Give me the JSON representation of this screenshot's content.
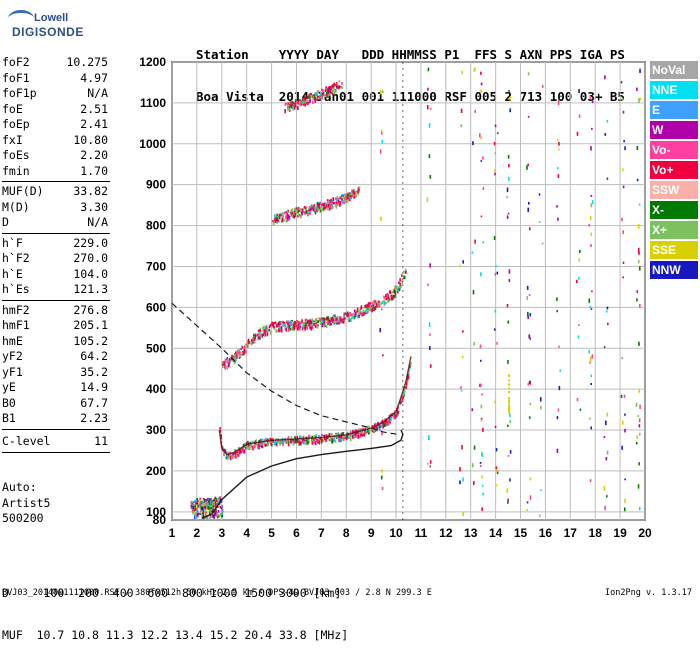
{
  "logo": {
    "line1": "Lowell",
    "line2": "DIGISONDE"
  },
  "header": {
    "row1": "Station    YYYY DAY   DDD HHMMSS P1  FFS S AXN PPS IGA PS",
    "row2": "Boa Vista  2014 Jan01 001 111000 RSF 005 2 713 100 03+ B5"
  },
  "params_group1": [
    {
      "label": "foF2",
      "value": "10.275"
    },
    {
      "label": "foF1",
      "value": "4.97"
    },
    {
      "label": "foF1p",
      "value": "N/A"
    },
    {
      "label": "foE",
      "value": "2.51"
    },
    {
      "label": "foEp",
      "value": "2.41"
    },
    {
      "label": "fxI",
      "value": "10.80"
    },
    {
      "label": "foEs",
      "value": "2.20"
    },
    {
      "label": "fmin",
      "value": "1.70"
    }
  ],
  "params_group2": [
    {
      "label": "MUF(D)",
      "value": "33.82"
    },
    {
      "label": "M(D)",
      "value": "3.30"
    },
    {
      "label": "D",
      "value": "N/A"
    }
  ],
  "params_group3": [
    {
      "label": "h`F",
      "value": "229.0"
    },
    {
      "label": "h`F2",
      "value": "270.0"
    },
    {
      "label": "h`E",
      "value": "104.0"
    },
    {
      "label": "h`Es",
      "value": "121.3"
    }
  ],
  "params_group4": [
    {
      "label": "hmF2",
      "value": "276.8"
    },
    {
      "label": "hmF1",
      "value": "205.1"
    },
    {
      "label": "hmE",
      "value": "105.2"
    },
    {
      "label": "yF2",
      "value": "64.2"
    },
    {
      "label": "yF1",
      "value": "35.2"
    },
    {
      "label": "yE",
      "value": "14.9"
    },
    {
      "label": "B0",
      "value": "67.7"
    },
    {
      "label": "B1",
      "value": "2.23"
    }
  ],
  "clevel": {
    "label": "C-level",
    "value": "11"
  },
  "auto": {
    "line1": "Auto:",
    "line2": "Artist5",
    "line3": "500200"
  },
  "legend": [
    {
      "label": "NoVal",
      "color": "#a6a6a6"
    },
    {
      "label": "NNE",
      "color": "#00e0f0"
    },
    {
      "label": "E",
      "color": "#3fa0ff"
    },
    {
      "label": "W",
      "color": "#b000a8"
    },
    {
      "label": "Vo-",
      "color": "#ff40a0"
    },
    {
      "label": "Vo+",
      "color": "#f00040"
    },
    {
      "label": "SSW",
      "color": "#f8b0a8"
    },
    {
      "label": "X-",
      "color": "#007a00"
    },
    {
      "label": "X+",
      "color": "#7cc060"
    },
    {
      "label": "SSE",
      "color": "#d8d000"
    },
    {
      "label": "NNW",
      "color": "#1818c0"
    }
  ],
  "bottom": {
    "row1": "D     100  200  400  600  800 1000 1500 3000 [km]",
    "row2": "MUF  10.7 10.8 11.3 12.2 13.4 15.2 20.4 33.8 [MHz]"
  },
  "footer": {
    "text": "BVJ03_2014001111000.RSF / 380fx512h 50 kHz 2.5 km / DPS-4D BVJ03 003 / 2.8 N 299.3 E",
    "version": "Ion2Png v. 1.3.17"
  },
  "chart_data": {
    "type": "scatter",
    "xlim": [
      1,
      20
    ],
    "ylim": [
      80,
      1200
    ],
    "xticks": [
      1,
      2,
      3,
      4,
      5,
      6,
      7,
      8,
      9,
      10,
      11,
      12,
      13,
      14,
      15,
      16,
      17,
      18,
      19,
      20
    ],
    "yticks": [
      80,
      100,
      200,
      300,
      400,
      500,
      600,
      700,
      800,
      900,
      1000,
      1100,
      1200
    ],
    "grid": true,
    "traces": [
      {
        "name": "F2 trace",
        "x": [
          2.9,
          3.0,
          3.2,
          3.5,
          4.0,
          5.0,
          6.0,
          7.0,
          8.0,
          9.0,
          9.5,
          10.0,
          10.2,
          10.4,
          10.6
        ],
        "y": [
          300,
          255,
          240,
          245,
          265,
          275,
          278,
          282,
          288,
          305,
          320,
          345,
          380,
          420,
          480
        ]
      },
      {
        "name": "F2 2nd hop",
        "x": [
          3.0,
          3.5,
          4.0,
          4.5,
          5.0,
          6.0,
          7.0,
          8.0,
          9.0,
          9.5,
          10.0,
          10.4
        ],
        "y": [
          460,
          480,
          510,
          540,
          555,
          560,
          565,
          580,
          605,
          620,
          645,
          695
        ]
      },
      {
        "name": "F2 3rd hop",
        "x": [
          5.0,
          5.5,
          6.0,
          7.0,
          8.0,
          8.5
        ],
        "y": [
          815,
          825,
          835,
          850,
          870,
          890
        ]
      },
      {
        "name": "F2 4th hop",
        "x": [
          5.5,
          6.0,
          7.0,
          7.8
        ],
        "y": [
          1090,
          1100,
          1125,
          1150
        ]
      },
      {
        "name": "E/Es trace",
        "x": [
          1.7,
          2.0,
          2.3,
          2.6,
          2.9
        ],
        "y": [
          115,
          118,
          122,
          126,
          128
        ]
      }
    ],
    "model_curve": {
      "x": [
        2.2,
        2.6,
        3.0,
        4.0,
        5.0,
        6.0,
        7.0,
        8.0,
        9.0,
        9.8,
        10.2,
        10.27,
        10.2
      ],
      "y": [
        84,
        95,
        130,
        185,
        212,
        230,
        240,
        248,
        255,
        262,
        275,
        290,
        300
      ]
    },
    "density_curve": {
      "x": [
        1.0,
        2.0,
        3.0,
        4.0,
        5.0,
        6.0,
        7.0,
        8.0,
        9.0,
        9.5,
        10.0
      ],
      "y": [
        610,
        555,
        500,
        440,
        395,
        360,
        335,
        320,
        305,
        295,
        290
      ]
    }
  }
}
